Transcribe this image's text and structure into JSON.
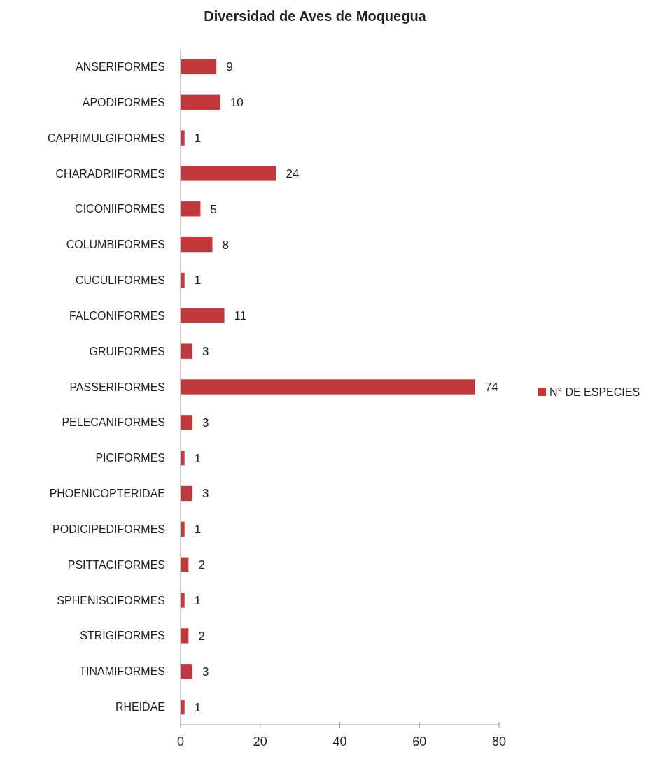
{
  "chart_data": {
    "type": "bar",
    "orientation": "horizontal",
    "title": "Diversidad de Aves de Moquegua",
    "categories": [
      "ANSERIFORMES",
      "APODIFORMES",
      "CAPRIMULGIFORMES",
      "CHARADRIIFORMES",
      "CICONIIFORMES",
      "COLUMBIFORMES",
      "CUCULIFORMES",
      "FALCONIFORMES",
      "GRUIFORMES",
      "PASSERIFORMES",
      "PELECANIFORMES",
      "PICIFORMES",
      "PHOENICOPTERIDAE",
      "PODICIPEDIFORMES",
      "PSITTACIFORMES",
      "SPHENISCIFORMES",
      "STRIGIFORMES",
      "TINAMIFORMES",
      "RHEIDAE"
    ],
    "series": [
      {
        "name": "N° DE ESPECIES",
        "color": "#c0393b",
        "values": [
          9,
          10,
          1,
          24,
          5,
          8,
          1,
          11,
          3,
          74,
          3,
          1,
          3,
          1,
          2,
          1,
          2,
          3,
          1
        ]
      }
    ],
    "xlim": [
      0,
      80
    ],
    "xticks": [
      0,
      20,
      40,
      60,
      80
    ],
    "data_labels": true,
    "legend": "right",
    "grid": false
  }
}
